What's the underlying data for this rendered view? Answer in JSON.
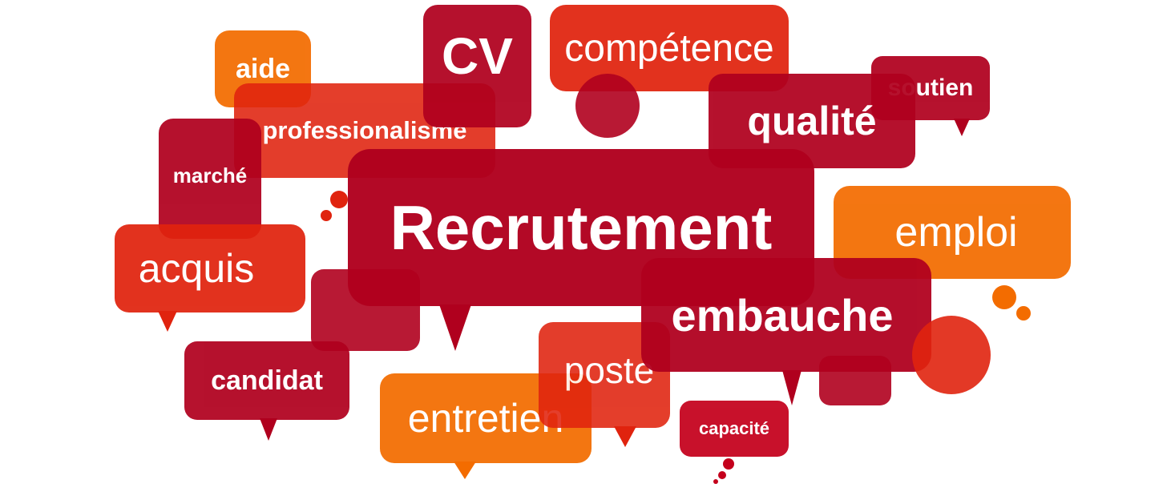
{
  "words": {
    "recrutement": "Recrutement",
    "cv": "CV",
    "competence": "compétence",
    "aide": "aide",
    "professionalisme": "professionalisme",
    "qualite": "qualité",
    "soutien": "soutien",
    "marche": "marché",
    "emploi": "emploi",
    "acquis": "acquis",
    "embauche": "embauche",
    "candidat": "candidat",
    "poste": "poste",
    "entretien": "entretien",
    "capacite": "capacité"
  },
  "colors": {
    "dark_red": "#b0001e",
    "red": "#e0230e",
    "orange": "#f36c00",
    "crimson": "#c4001c"
  }
}
